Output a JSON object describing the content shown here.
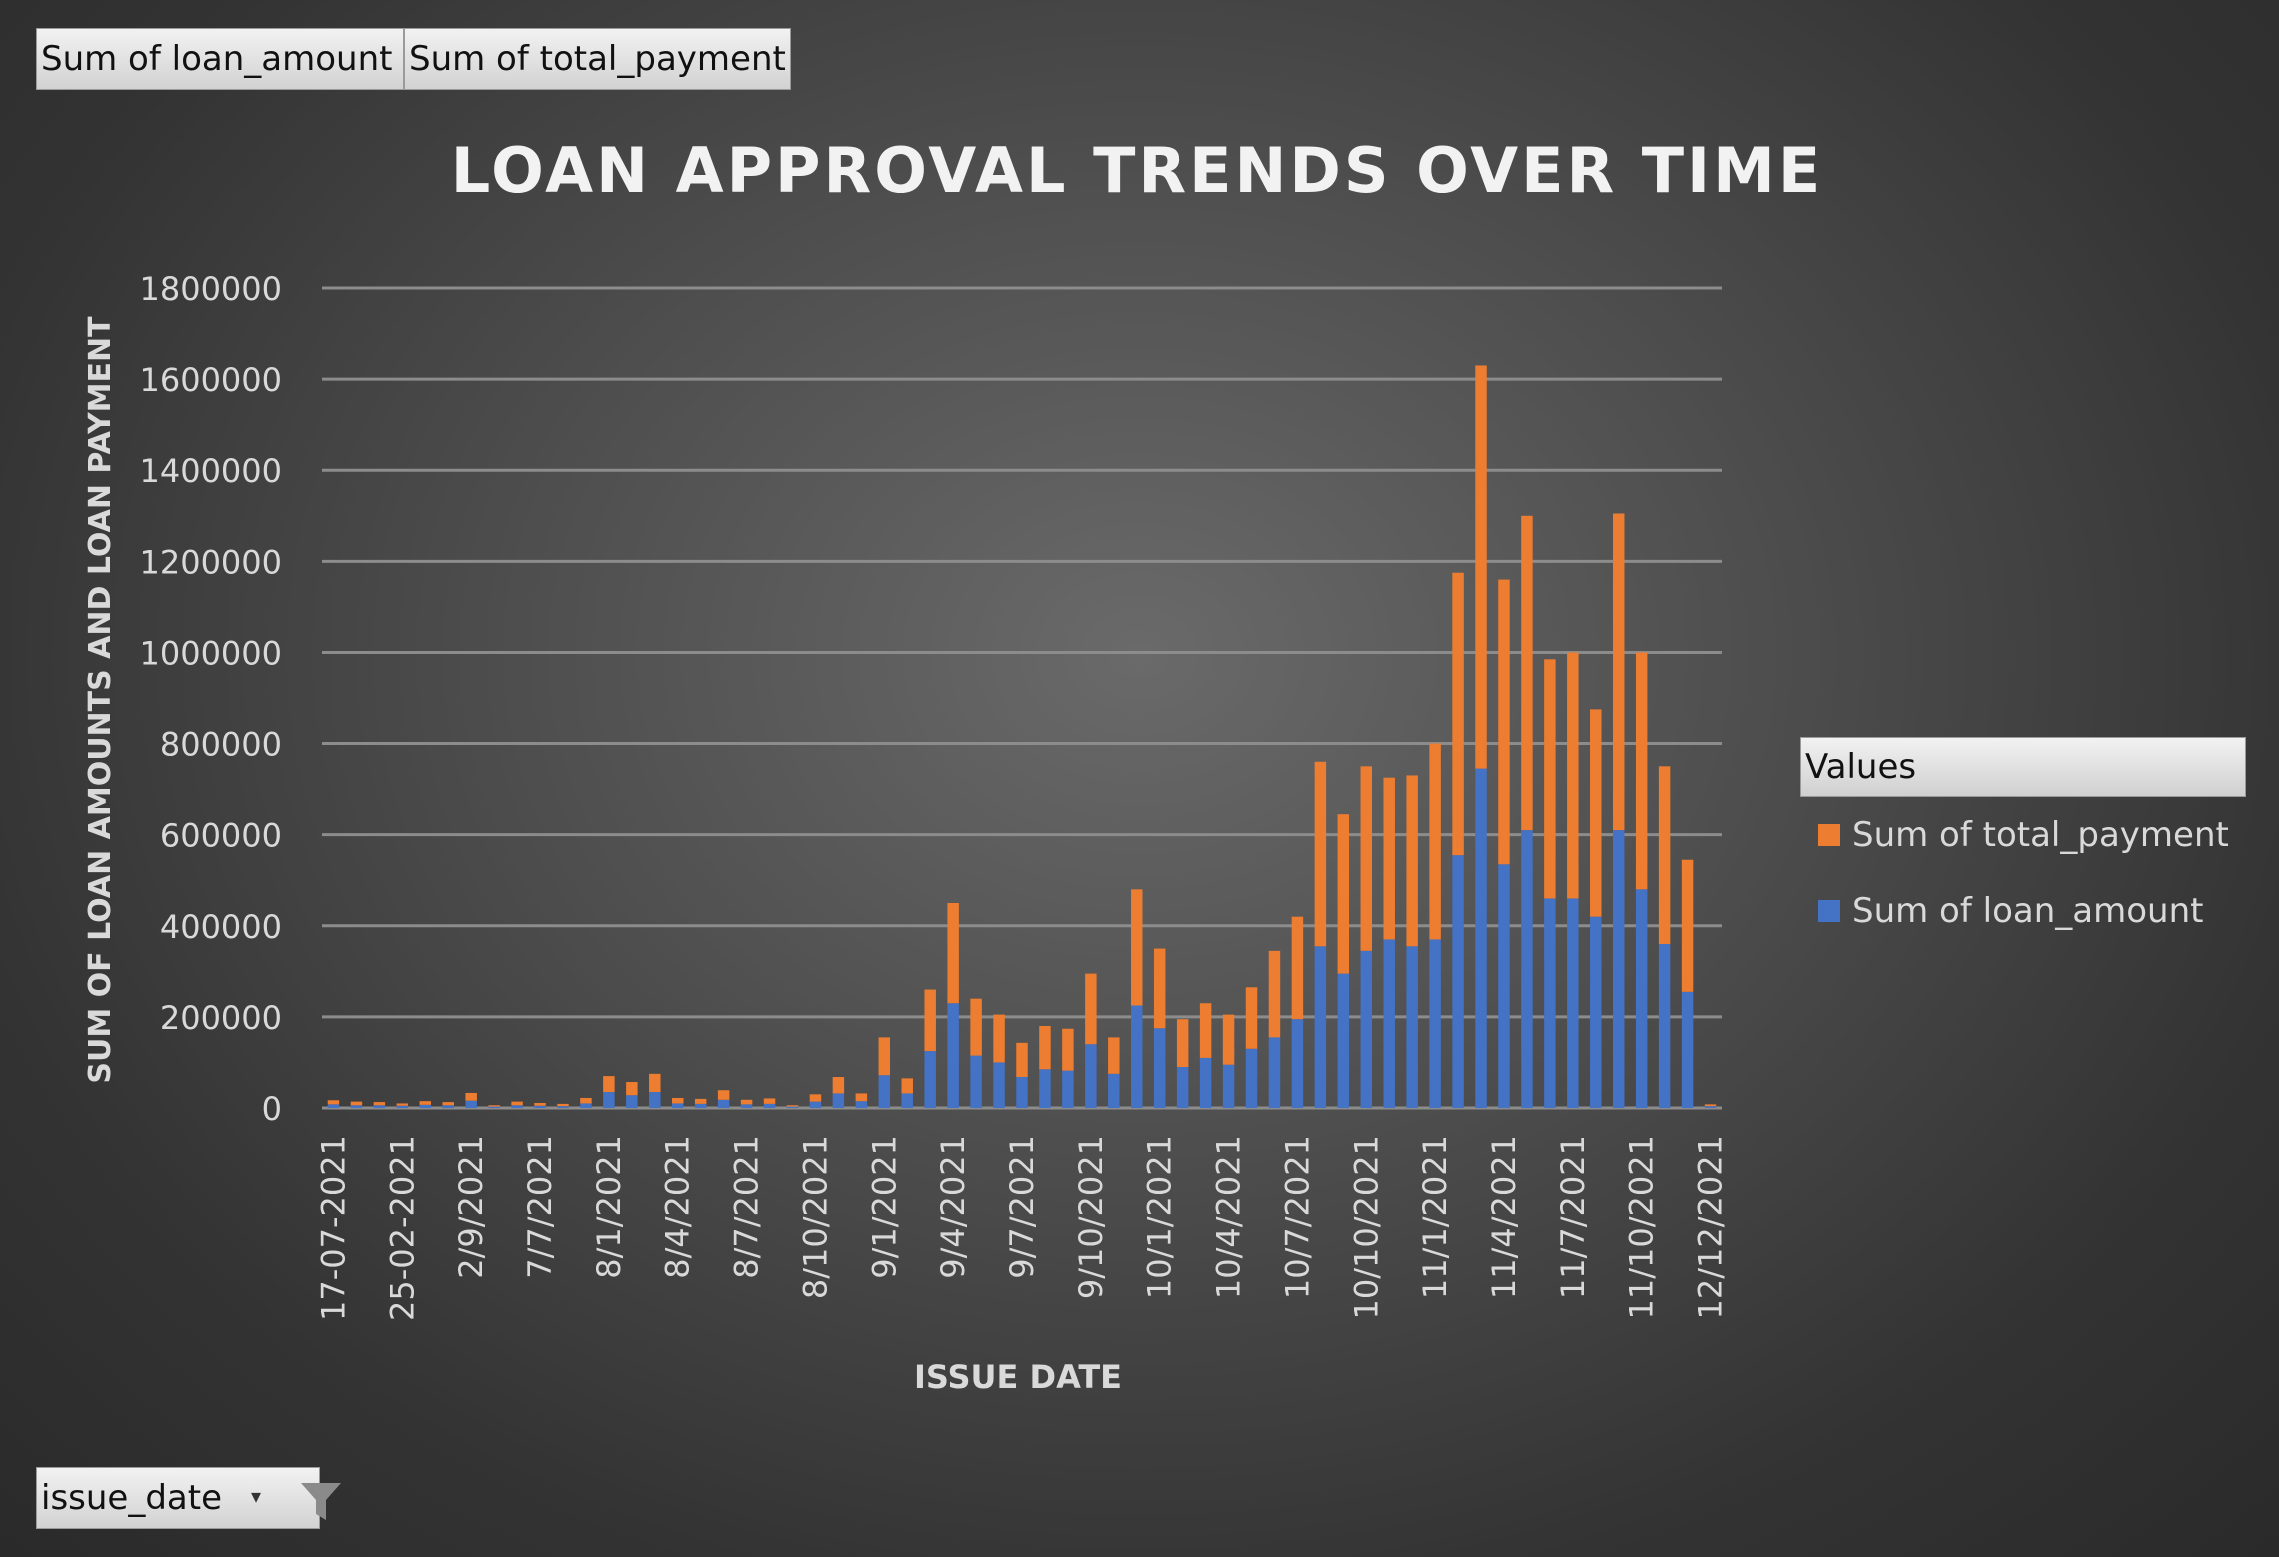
{
  "filters": {
    "loan_button": "Sum of loan_amount",
    "total_button": "Sum of total_payment",
    "date_button": "issue_date"
  },
  "legend": {
    "title": "Values",
    "items": [
      {
        "label": "Sum of total_payment",
        "color": "#ed7d31"
      },
      {
        "label": "Sum of loan_amount",
        "color": "#4472c4"
      }
    ]
  },
  "chart_data": {
    "type": "bar",
    "stacked": true,
    "title": "LOAN APPROVAL TRENDS OVER TIME",
    "xlabel": "ISSUE DATE",
    "ylabel": "SUM OF LOAN AMOUNTS AND LOAN PAYMENT",
    "ylim": [
      0,
      1800000
    ],
    "yticks": [
      0,
      200000,
      400000,
      600000,
      800000,
      1000000,
      1200000,
      1400000,
      1600000,
      1800000
    ],
    "grid": true,
    "legend_position": "right",
    "x_tick_labels": [
      "17-07-2021",
      "25-02-2021",
      "2/9/2021",
      "7/7/2021",
      "8/1/2021",
      "8/4/2021",
      "8/7/2021",
      "8/10/2021",
      "9/1/2021",
      "9/4/2021",
      "9/7/2021",
      "9/10/2021",
      "10/1/2021",
      "10/4/2021",
      "10/7/2021",
      "10/10/2021",
      "11/1/2021",
      "11/4/2021",
      "11/7/2021",
      "11/10/2021",
      "12/12/2021"
    ],
    "series": [
      {
        "name": "Sum of loan_amount",
        "color": "#4472c4",
        "values": [
          8000,
          6000,
          6000,
          5000,
          7000,
          6000,
          16000,
          3000,
          6000,
          5000,
          4000,
          10000,
          35000,
          28000,
          35000,
          10000,
          9000,
          18000,
          8000,
          9000,
          3000,
          14000,
          32000,
          15000,
          72000,
          32000,
          125000,
          230000,
          115000,
          100000,
          68000,
          85000,
          82000,
          140000,
          75000,
          225000,
          175000,
          90000,
          110000,
          95000,
          130000,
          155000,
          195000,
          355000,
          295000,
          345000,
          370000,
          355000,
          370000,
          555000,
          745000,
          535000,
          610000,
          460000,
          460000,
          420000,
          610000,
          480000,
          360000,
          255000,
          4000
        ]
      },
      {
        "name": "Sum of total_payment",
        "color": "#ed7d31",
        "values": [
          9000,
          8000,
          7000,
          5000,
          8000,
          7000,
          17000,
          3000,
          8000,
          6000,
          5000,
          12000,
          35000,
          29000,
          40000,
          12000,
          11000,
          21000,
          10000,
          12000,
          3000,
          16000,
          36000,
          17000,
          83000,
          33000,
          135000,
          220000,
          125000,
          105000,
          75000,
          95000,
          92000,
          155000,
          80000,
          255000,
          175000,
          105000,
          120000,
          110000,
          135000,
          190000,
          225000,
          405000,
          350000,
          405000,
          355000,
          375000,
          430000,
          620000,
          885000,
          625000,
          690000,
          525000,
          540000,
          455000,
          695000,
          520000,
          390000,
          290000,
          4000
        ]
      }
    ]
  }
}
